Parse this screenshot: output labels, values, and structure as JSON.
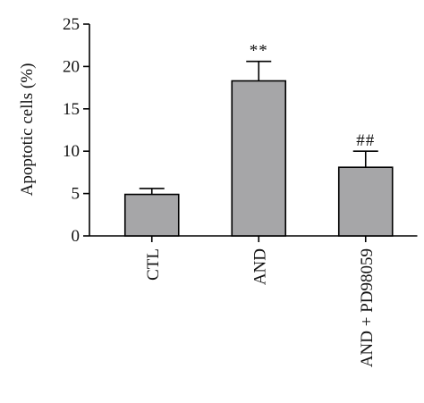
{
  "chart_data": {
    "type": "bar",
    "categories": [
      "CTL",
      "AND",
      "AND + PD98059"
    ],
    "values": [
      4.9,
      18.3,
      8.1
    ],
    "errors": [
      0.7,
      2.3,
      1.9
    ],
    "significance": [
      "",
      "**",
      "##"
    ],
    "ylabel": "Apoptotic cells (%)",
    "xlabel": "",
    "ylim": [
      0,
      25
    ],
    "yticks": [
      0,
      5,
      10,
      15,
      20,
      25
    ],
    "bar_color": "#a6a6a8",
    "grid": false,
    "legend": "none"
  }
}
